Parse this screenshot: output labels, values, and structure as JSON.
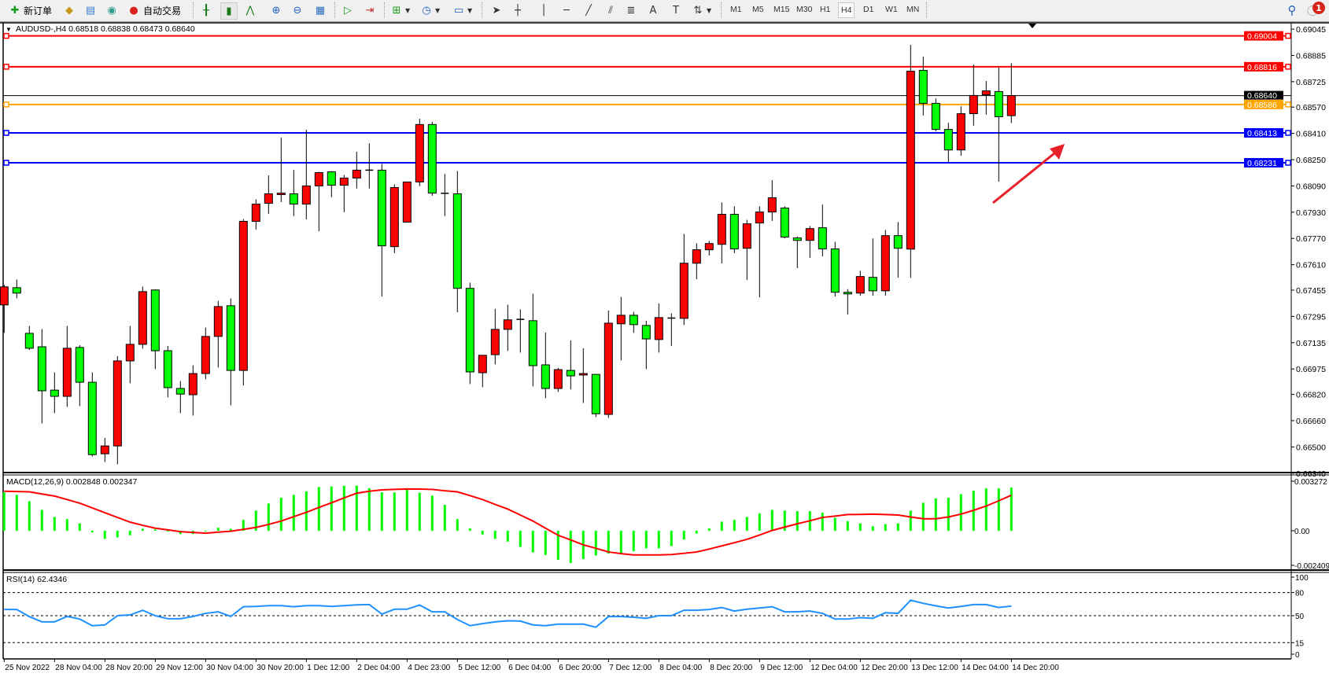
{
  "toolbar": {
    "new_order_label": "新订单",
    "auto_trading_label": "自动交易",
    "timeframes": [
      "M1",
      "M5",
      "M15",
      "M30",
      "H1",
      "H4",
      "D1",
      "W1",
      "MN"
    ],
    "active_timeframe": "H4",
    "notification_count": "1",
    "icons": [
      "new-order-icon",
      "market-watch-icon",
      "data-window-icon",
      "signals-icon",
      "auto-trading-icon",
      "bar-chart-icon",
      "candlestick-icon",
      "line-chart-icon",
      "zoom-in-icon",
      "zoom-out-icon",
      "tile-windows-icon",
      "auto-scroll-icon",
      "chart-shift-icon",
      "indicators-icon",
      "periods-icon",
      "templates-icon",
      "cursor-icon",
      "crosshair-icon",
      "vertical-line-icon",
      "horizontal-line-icon",
      "trendline-icon",
      "fibonacci-icon",
      "fibo-fan-icon",
      "text-icon",
      "text-label-icon",
      "arrows-icon",
      "search-icon",
      "notification-icon"
    ]
  },
  "chart": {
    "header": "AUDUSD-,H4  0.68518 0.68838 0.68473 0.68640",
    "price_ticks": [
      "0.69045",
      "0.68885",
      "0.68725",
      "0.68570",
      "0.68410",
      "0.68250",
      "0.68090",
      "0.67930",
      "0.67770",
      "0.67610",
      "0.67455",
      "0.67295",
      "0.67135",
      "0.66975",
      "0.66820",
      "0.66660",
      "0.66500",
      "0.66340"
    ],
    "price_lines": [
      {
        "price": "0.69004",
        "color": "#ff0000"
      },
      {
        "price": "0.68816",
        "color": "#ff0000"
      },
      {
        "price": "0.68586",
        "color": "#ffa500"
      },
      {
        "price": "0.68413",
        "color": "#0000ff"
      },
      {
        "price": "0.68231",
        "color": "#0000ff"
      }
    ],
    "current_price": "0.68640",
    "up_color": "#ff0000",
    "down_color": "#00ff00",
    "arrow_color": "#e8202a",
    "time_labels": [
      "25 Nov 2022",
      "28 Nov 04:00",
      "28 Nov 20:00",
      "29 Nov 12:00",
      "30 Nov 04:00",
      "30 Nov 20:00",
      "1 Dec 12:00",
      "2 Dec 04:00",
      "4 Dec 23:00",
      "5 Dec 12:00",
      "6 Dec 04:00",
      "6 Dec 20:00",
      "7 Dec 12:00",
      "8 Dec 04:00",
      "8 Dec 20:00",
      "9 Dec 12:00",
      "12 Dec 04:00",
      "12 Dec 20:00",
      "13 Dec 12:00",
      "14 Dec 04:00",
      "14 Dec 20:00"
    ]
  },
  "macd": {
    "label": "MACD(12,26,9) 0.002848 0.002347",
    "axis_labels": [
      "0.003272",
      "0.00",
      "-0.002409"
    ]
  },
  "rsi": {
    "label": "RSI(14) 62.4346",
    "axis_labels": [
      "100",
      "80",
      "50",
      "15",
      "0"
    ]
  },
  "chart_data": {
    "type": "candlestick",
    "symbol": "AUDUSD-",
    "timeframe": "H4",
    "ylim": [
      0.6634,
      0.69045
    ],
    "ohlc": [
      [
        0.67365,
        0.67488,
        0.67195,
        0.67475
      ],
      [
        0.6747,
        0.6752,
        0.67406,
        0.67437
      ],
      [
        0.67192,
        0.67237,
        0.67091,
        0.67101
      ],
      [
        0.6711,
        0.67218,
        0.66643,
        0.66842
      ],
      [
        0.66846,
        0.66954,
        0.66706,
        0.66808
      ],
      [
        0.66808,
        0.67237,
        0.66744,
        0.67101
      ],
      [
        0.67106,
        0.6712,
        0.66749,
        0.66894
      ],
      [
        0.66894,
        0.66954,
        0.66442,
        0.66453
      ],
      [
        0.66458,
        0.66555,
        0.66408,
        0.66506
      ],
      [
        0.66506,
        0.67053,
        0.66394,
        0.67024
      ],
      [
        0.67024,
        0.67237,
        0.66888,
        0.67125
      ],
      [
        0.67125,
        0.67477,
        0.67099,
        0.67446
      ],
      [
        0.67456,
        0.6746,
        0.66974,
        0.67086
      ],
      [
        0.67086,
        0.67115,
        0.66802,
        0.66861
      ],
      [
        0.66856,
        0.66901,
        0.66706,
        0.66822
      ],
      [
        0.66818,
        0.66997,
        0.66691,
        0.66947
      ],
      [
        0.66947,
        0.67227,
        0.66912,
        0.67173
      ],
      [
        0.67173,
        0.6739,
        0.66984,
        0.67355
      ],
      [
        0.6736,
        0.67405,
        0.66754,
        0.66966
      ],
      [
        0.66966,
        0.67888,
        0.66874,
        0.67874
      ],
      [
        0.67874,
        0.68008,
        0.67824,
        0.67979
      ],
      [
        0.67984,
        0.68154,
        0.6792,
        0.68042
      ],
      [
        0.68037,
        0.68384,
        0.67992,
        0.68046
      ],
      [
        0.68042,
        0.68187,
        0.67906,
        0.67979
      ],
      [
        0.67979,
        0.68432,
        0.67886,
        0.6809
      ],
      [
        0.6809,
        0.68176,
        0.67814,
        0.68171
      ],
      [
        0.68176,
        0.6818,
        0.68021,
        0.68094
      ],
      [
        0.68094,
        0.68157,
        0.6793,
        0.68138
      ],
      [
        0.68138,
        0.68298,
        0.68074,
        0.68186
      ],
      [
        0.68186,
        0.68349,
        0.68074,
        0.68186
      ],
      [
        0.68186,
        0.68224,
        0.67416,
        0.67725
      ],
      [
        0.6772,
        0.68099,
        0.6768,
        0.6808
      ],
      [
        0.67869,
        0.68114,
        0.67869,
        0.68114
      ],
      [
        0.68114,
        0.68499,
        0.68088,
        0.68464
      ],
      [
        0.68464,
        0.6848,
        0.6803,
        0.68046
      ],
      [
        0.68045,
        0.68163,
        0.67906,
        0.68045
      ],
      [
        0.68042,
        0.68181,
        0.6732,
        0.67466
      ],
      [
        0.67466,
        0.67501,
        0.66883,
        0.66957
      ],
      [
        0.66952,
        0.67058,
        0.66864,
        0.67058
      ],
      [
        0.67062,
        0.67341,
        0.67003,
        0.67216
      ],
      [
        0.67216,
        0.67366,
        0.67085,
        0.67274
      ],
      [
        0.67277,
        0.67338,
        0.67075,
        0.67277
      ],
      [
        0.67269,
        0.67434,
        0.66869,
        0.66995
      ],
      [
        0.67,
        0.67197,
        0.66797,
        0.66856
      ],
      [
        0.66856,
        0.66981,
        0.66835,
        0.66971
      ],
      [
        0.66966,
        0.67149,
        0.6685,
        0.66933
      ],
      [
        0.66938,
        0.67101,
        0.66768,
        0.66947
      ],
      [
        0.66942,
        0.66942,
        0.66682,
        0.66702
      ],
      [
        0.66698,
        0.67331,
        0.66677,
        0.67254
      ],
      [
        0.6725,
        0.67414,
        0.67027,
        0.67302
      ],
      [
        0.67302,
        0.67322,
        0.67195,
        0.67245
      ],
      [
        0.6724,
        0.67269,
        0.66974,
        0.67158
      ],
      [
        0.67154,
        0.67374,
        0.67075,
        0.67288
      ],
      [
        0.67285,
        0.67314,
        0.67114,
        0.67285
      ],
      [
        0.67283,
        0.67798,
        0.67243,
        0.67619
      ],
      [
        0.67619,
        0.67741,
        0.67522,
        0.67701
      ],
      [
        0.67701,
        0.67755,
        0.67666,
        0.67739
      ],
      [
        0.67734,
        0.6799,
        0.67618,
        0.67917
      ],
      [
        0.67917,
        0.67966,
        0.6768,
        0.67706
      ],
      [
        0.6771,
        0.67883,
        0.67517,
        0.67859
      ],
      [
        0.67864,
        0.67966,
        0.67411,
        0.67931
      ],
      [
        0.67931,
        0.68125,
        0.67877,
        0.68018
      ],
      [
        0.67955,
        0.67966,
        0.67771,
        0.67778
      ],
      [
        0.67773,
        0.67782,
        0.67589,
        0.67758
      ],
      [
        0.67758,
        0.67846,
        0.67651,
        0.6783
      ],
      [
        0.67835,
        0.67976,
        0.67661,
        0.67706
      ],
      [
        0.67706,
        0.6775,
        0.67416,
        0.67442
      ],
      [
        0.67442,
        0.67461,
        0.67306,
        0.67432
      ],
      [
        0.67437,
        0.67573,
        0.67421,
        0.67538
      ],
      [
        0.67533,
        0.6777,
        0.67421,
        0.67451
      ],
      [
        0.67451,
        0.67822,
        0.67421,
        0.67787
      ],
      [
        0.67787,
        0.6787,
        0.67531,
        0.6771
      ],
      [
        0.67705,
        0.68949,
        0.6753,
        0.68789
      ],
      [
        0.68794,
        0.68877,
        0.68519,
        0.68593
      ],
      [
        0.68593,
        0.68623,
        0.68423,
        0.68434
      ],
      [
        0.68434,
        0.68474,
        0.68234,
        0.68309
      ],
      [
        0.68309,
        0.68575,
        0.68274,
        0.6853
      ],
      [
        0.6853,
        0.68829,
        0.68457,
        0.68641
      ],
      [
        0.68645,
        0.68729,
        0.68524,
        0.68669
      ],
      [
        0.68665,
        0.68812,
        0.68116,
        0.68511
      ],
      [
        0.68518,
        0.68838,
        0.68473,
        0.6864
      ]
    ],
    "macd": {
      "ylim": [
        -0.002409,
        0.003272
      ],
      "histogram": [
        0.00253,
        0.00237,
        0.00195,
        0.00138,
        0.00091,
        0.00077,
        0.00049,
        -0.00011,
        -0.00053,
        -0.00044,
        -0.0003,
        0.00013,
        9e-05,
        -2e-05,
        -0.00022,
        -0.00022,
        0.0,
        0.0002,
        0.00013,
        0.00072,
        0.00133,
        0.0018,
        0.00218,
        0.00237,
        0.0026,
        0.00289,
        0.00292,
        0.00297,
        0.00298,
        0.00281,
        0.00254,
        0.00253,
        0.00273,
        0.00251,
        0.00232,
        0.00171,
        0.00077,
        0.00016,
        -0.00025,
        -0.00053,
        -0.00072,
        -0.00107,
        -0.00143,
        -0.0016,
        -0.00192,
        -0.00213,
        -0.00187,
        -0.00163,
        -0.00151,
        -0.00151,
        -0.00135,
        -0.00116,
        -0.00116,
        -0.00101,
        -0.00058,
        -0.00019,
        0.00016,
        0.0006,
        0.00072,
        0.00091,
        0.00115,
        0.00138,
        0.00133,
        0.00129,
        0.00129,
        0.00119,
        0.00086,
        0.00063,
        0.00049,
        0.0003,
        0.00044,
        0.00049,
        0.00133,
        0.00185,
        0.00214,
        0.00218,
        0.00242,
        0.00265,
        0.0028,
        0.0028,
        0.002848
      ],
      "signal": [
        0.00261,
        0.00259,
        0.00257,
        0.00243,
        0.00229,
        0.00206,
        0.00182,
        0.00151,
        0.00119,
        0.00088,
        0.00057,
        0.00036,
        0.00017,
        6e-05,
        -6e-05,
        -0.00011,
        -0.00016,
        -9e-05,
        -3e-05,
        9e-05,
        0.00022,
        0.00042,
        0.00064,
        0.00093,
        0.00122,
        0.00154,
        0.00185,
        0.00217,
        0.00248,
        0.00261,
        0.0027,
        0.00273,
        0.00276,
        0.00275,
        0.00273,
        0.00264,
        0.00257,
        0.00232,
        0.00206,
        0.00174,
        0.00143,
        0.00104,
        0.00064,
        0.00017,
        -0.0003,
        -0.00061,
        -0.00093,
        -0.00116,
        -0.0014,
        -0.00151,
        -0.0016,
        -0.0016,
        -0.0016,
        -0.00157,
        -0.00149,
        -0.0014,
        -0.00121,
        -0.001,
        -0.00079,
        -0.00057,
        -0.00028,
        2e-05,
        0.00024,
        0.00046,
        0.00066,
        0.00088,
        0.00097,
        0.00107,
        0.00108,
        0.0011,
        0.00107,
        0.00104,
        0.00091,
        0.00079,
        0.00079,
        0.00091,
        0.0011,
        0.00135,
        0.00163,
        0.00198,
        0.002347
      ],
      "histogram_color": "#00ff00",
      "signal_color": "#ff0000"
    },
    "rsi": {
      "ylim": [
        0,
        100
      ],
      "levels": [
        80,
        50,
        15
      ],
      "values": [
        58,
        58,
        48.8,
        42,
        42,
        49,
        45.6,
        37,
        38,
        50,
        51,
        57,
        50,
        46,
        46,
        49,
        53,
        55,
        49,
        61.6,
        62,
        63,
        63,
        61.6,
        63,
        63,
        62,
        63,
        64,
        64.4,
        52,
        58.4,
        58.4,
        63.8,
        55,
        55,
        45,
        37,
        39.7,
        42,
        43.4,
        43,
        38,
        37,
        39,
        39,
        39,
        35,
        48.8,
        48.8,
        48,
        46.6,
        50,
        50,
        57,
        57,
        58,
        60.6,
        56,
        58.4,
        60,
        61.6,
        55,
        55,
        56,
        53,
        45.6,
        45.6,
        47.5,
        46.6,
        53.8,
        53,
        70,
        66,
        62.8,
        60,
        62,
        64.4,
        64.4,
        60.6,
        62.4346
      ],
      "color": "#1e90ff"
    }
  }
}
